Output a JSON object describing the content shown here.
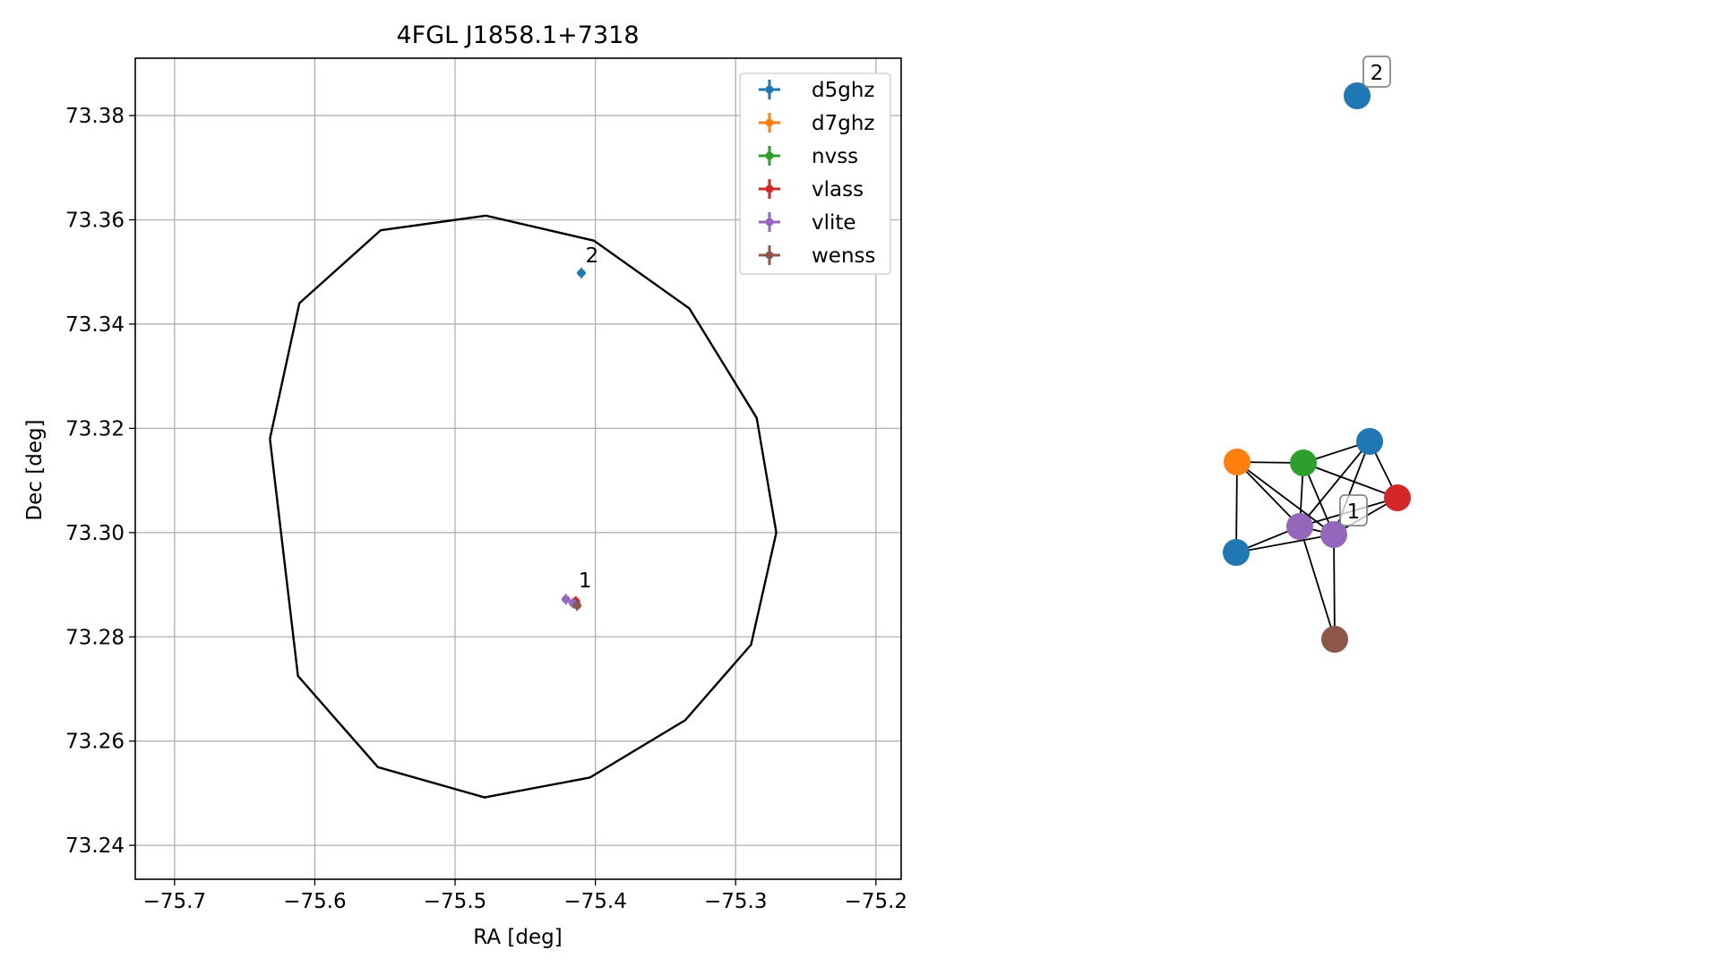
{
  "chart_data": [
    {
      "type": "scatter",
      "title": "4FGL J1858.1+7318",
      "xlabel": "RA [deg]",
      "ylabel": "Dec [deg]",
      "xlim": [
        -75.728,
        -75.182
      ],
      "ylim": [
        73.2335,
        73.391
      ],
      "xticks": [
        -75.7,
        -75.6,
        -75.5,
        -75.4,
        -75.3,
        -75.2
      ],
      "xtick_labels": [
        "−75.7",
        "−75.6",
        "−75.5",
        "−75.4",
        "−75.3",
        "−75.2"
      ],
      "yticks": [
        73.24,
        73.26,
        73.28,
        73.3,
        73.32,
        73.34,
        73.36,
        73.38
      ],
      "ytick_labels": [
        "73.24",
        "73.26",
        "73.28",
        "73.30",
        "73.32",
        "73.34",
        "73.36",
        "73.38"
      ],
      "grid": true,
      "legend": "top-right",
      "ellipse": {
        "ra": [
          -75.632,
          -75.611,
          -75.553,
          -75.478,
          -75.401,
          -75.333,
          -75.285,
          -75.271,
          -75.289,
          -75.336,
          -75.404,
          -75.479,
          -75.555,
          -75.612,
          -75.632
        ],
        "dec": [
          73.318,
          73.344,
          73.358,
          73.3608,
          73.356,
          73.343,
          73.322,
          73.3,
          73.2785,
          73.264,
          73.253,
          73.2492,
          73.255,
          73.2725,
          73.318
        ]
      },
      "series": [
        {
          "name": "d5ghz",
          "color": "#1f77b4",
          "points": [
            {
              "x": -75.41,
              "y": 73.3498
            }
          ]
        },
        {
          "name": "d7ghz",
          "color": "#ff7f0e",
          "points": []
        },
        {
          "name": "nvss",
          "color": "#2ca02c",
          "points": []
        },
        {
          "name": "vlass",
          "color": "#d62728",
          "points": [
            {
              "x": -75.414,
              "y": 73.2868
            }
          ]
        },
        {
          "name": "vlite",
          "color": "#9467bd",
          "points": [
            {
              "x": -75.421,
              "y": 73.2872
            },
            {
              "x": -75.416,
              "y": 73.2865
            }
          ]
        },
        {
          "name": "wenss",
          "color": "#8c564b",
          "points": [
            {
              "x": -75.413,
              "y": 73.286
            }
          ]
        }
      ],
      "annotations": [
        {
          "text": "2",
          "x": -75.407,
          "y": 73.3518
        },
        {
          "text": "1",
          "x": -75.412,
          "y": 73.2895
        }
      ]
    },
    {
      "type": "network",
      "nodes": [
        {
          "id": "n2",
          "color": "#1f77b4",
          "label": "2"
        },
        {
          "id": "d5a",
          "color": "#1f77b4",
          "label": ""
        },
        {
          "id": "d7",
          "color": "#ff7f0e",
          "label": ""
        },
        {
          "id": "nv",
          "color": "#2ca02c",
          "label": ""
        },
        {
          "id": "vl",
          "color": "#d62728",
          "label": ""
        },
        {
          "id": "vlA",
          "color": "#9467bd",
          "label": ""
        },
        {
          "id": "vlB",
          "color": "#9467bd",
          "label": "1"
        },
        {
          "id": "d5b",
          "color": "#1f77b4",
          "label": ""
        },
        {
          "id": "we",
          "color": "#8c564b",
          "label": ""
        }
      ],
      "edges": [
        [
          "d7",
          "nv"
        ],
        [
          "d7",
          "vlA"
        ],
        [
          "d7",
          "vlB"
        ],
        [
          "d7",
          "d5b"
        ],
        [
          "nv",
          "d5a"
        ],
        [
          "nv",
          "vl"
        ],
        [
          "nv",
          "vlA"
        ],
        [
          "nv",
          "vlB"
        ],
        [
          "d5a",
          "vl"
        ],
        [
          "d5a",
          "vlA"
        ],
        [
          "d5a",
          "vlB"
        ],
        [
          "vl",
          "vlA"
        ],
        [
          "vl",
          "vlB"
        ],
        [
          "vlA",
          "vlB"
        ],
        [
          "vlA",
          "d5b"
        ],
        [
          "vlA",
          "we"
        ],
        [
          "vlB",
          "d5b"
        ],
        [
          "vlB",
          "we"
        ]
      ]
    }
  ]
}
